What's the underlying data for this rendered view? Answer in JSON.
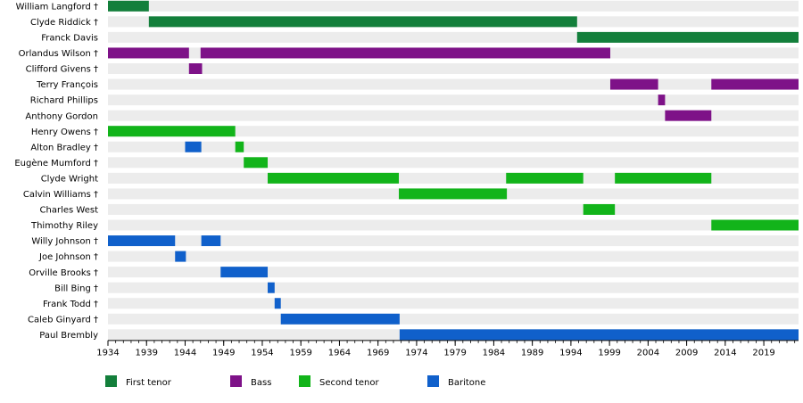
{
  "chart_data": {
    "type": "timeline",
    "x_range": [
      1934,
      2023.5
    ],
    "x_ticks": [
      1934,
      1939,
      1944,
      1949,
      1954,
      1959,
      1964,
      1969,
      1974,
      1979,
      1984,
      1989,
      1994,
      1999,
      2004,
      2009,
      2014,
      2019
    ],
    "roles": [
      {
        "key": "first",
        "name": "First tenor",
        "color": "#137f3b"
      },
      {
        "key": "bass",
        "name": "Bass",
        "color": "#7e1288"
      },
      {
        "key": "second",
        "name": "Second tenor",
        "color": "#12b41a"
      },
      {
        "key": "baritone",
        "name": "Baritone",
        "color": "#1060cb"
      }
    ],
    "members": [
      {
        "name": "William Langford †",
        "spans": [
          {
            "role": "first",
            "start": 1934,
            "end": 1939.3
          }
        ]
      },
      {
        "name": "Clyde Riddick †",
        "spans": [
          {
            "role": "first",
            "start": 1939.3,
            "end": 1994.8
          }
        ]
      },
      {
        "name": "Franck Davis",
        "spans": [
          {
            "role": "first",
            "start": 1994.8,
            "end": 2023.5
          }
        ]
      },
      {
        "name": "Orlandus Wilson †",
        "spans": [
          {
            "role": "bass",
            "start": 1934,
            "end": 1944.5
          },
          {
            "role": "bass",
            "start": 1946,
            "end": 1999.1
          }
        ]
      },
      {
        "name": "Clifford Givens †",
        "spans": [
          {
            "role": "bass",
            "start": 1944.5,
            "end": 1946.2
          }
        ]
      },
      {
        "name": "Terry François",
        "spans": [
          {
            "role": "bass",
            "start": 1999.1,
            "end": 2005.3
          },
          {
            "role": "bass",
            "start": 2012.2,
            "end": 2023.5
          }
        ]
      },
      {
        "name": "Richard Phillips",
        "spans": [
          {
            "role": "bass",
            "start": 2005.3,
            "end": 2006.2
          }
        ]
      },
      {
        "name": "Anthony Gordon",
        "spans": [
          {
            "role": "bass",
            "start": 2006.2,
            "end": 2012.2
          }
        ]
      },
      {
        "name": "Henry Owens †",
        "spans": [
          {
            "role": "second",
            "start": 1934,
            "end": 1950.5
          }
        ]
      },
      {
        "name": "Alton Bradley †",
        "spans": [
          {
            "role": "baritone",
            "start": 1944,
            "end": 1946.1
          },
          {
            "role": "second",
            "start": 1950.5,
            "end": 1951.6
          }
        ]
      },
      {
        "name": "Eugène Mumford †",
        "spans": [
          {
            "role": "second",
            "start": 1951.6,
            "end": 1954.7
          }
        ]
      },
      {
        "name": "Clyde Wright",
        "spans": [
          {
            "role": "second",
            "start": 1954.7,
            "end": 1971.7
          },
          {
            "role": "second",
            "start": 1985.6,
            "end": 1995.6
          },
          {
            "role": "second",
            "start": 1999.7,
            "end": 2012.2
          }
        ]
      },
      {
        "name": "Calvin Williams †",
        "spans": [
          {
            "role": "second",
            "start": 1971.7,
            "end": 1985.7
          }
        ]
      },
      {
        "name": "Charles West",
        "spans": [
          {
            "role": "second",
            "start": 1995.6,
            "end": 1999.7
          }
        ]
      },
      {
        "name": "Thimothy Riley",
        "spans": [
          {
            "role": "second",
            "start": 2012.2,
            "end": 2023.5
          }
        ]
      },
      {
        "name": "Willy Johnson †",
        "spans": [
          {
            "role": "baritone",
            "start": 1934,
            "end": 1942.7
          },
          {
            "role": "baritone",
            "start": 1946.1,
            "end": 1948.6
          }
        ]
      },
      {
        "name": "Joe Johnson †",
        "spans": [
          {
            "role": "baritone",
            "start": 1942.7,
            "end": 1944.1
          }
        ]
      },
      {
        "name": "Orville Brooks †",
        "spans": [
          {
            "role": "baritone",
            "start": 1948.6,
            "end": 1954.7
          }
        ]
      },
      {
        "name": "Bill Bing †",
        "spans": [
          {
            "role": "baritone",
            "start": 1954.7,
            "end": 1955.6
          }
        ]
      },
      {
        "name": "Frank Todd †",
        "spans": [
          {
            "role": "baritone",
            "start": 1955.6,
            "end": 1956.4
          }
        ]
      },
      {
        "name": "Caleb Ginyard †",
        "spans": [
          {
            "role": "baritone",
            "start": 1956.4,
            "end": 1971.8
          }
        ]
      },
      {
        "name": "Paul Brembly",
        "spans": [
          {
            "role": "baritone",
            "start": 1971.8,
            "end": 2023.5
          }
        ]
      }
    ]
  }
}
